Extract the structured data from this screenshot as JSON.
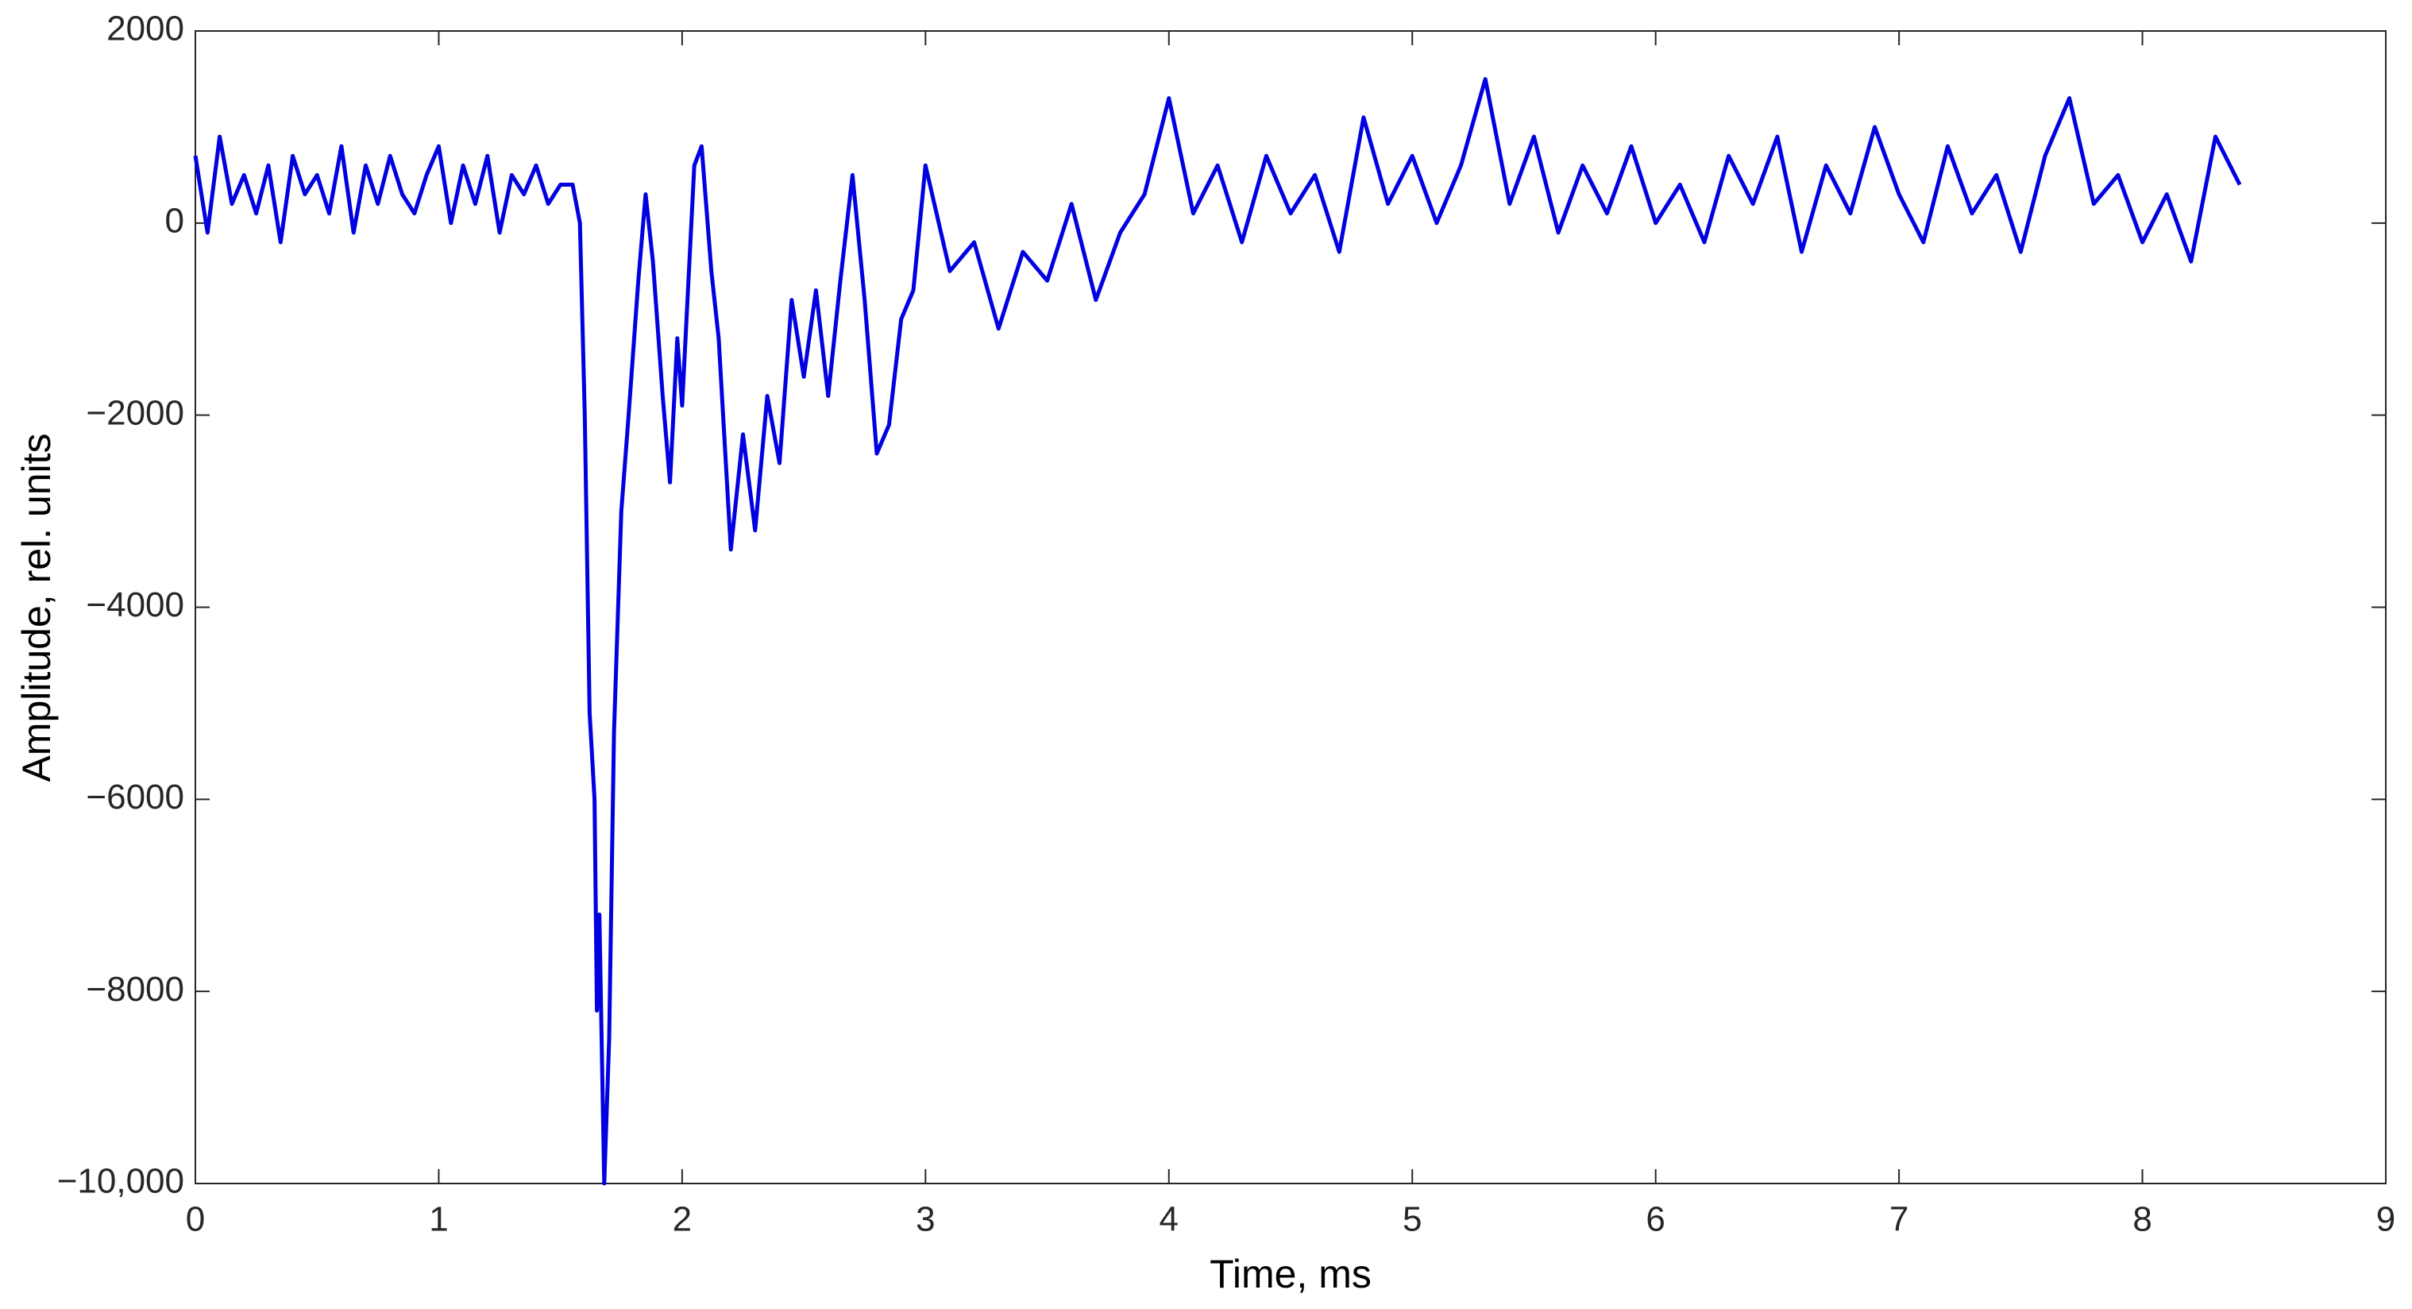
{
  "chart_data": {
    "type": "line",
    "xlabel": "Time, ms",
    "ylabel": "Amplitude, rel. units",
    "color": "#0000e0",
    "xlim": [
      0,
      9
    ],
    "xticks": [
      0,
      1,
      2,
      3,
      4,
      5,
      6,
      7,
      8,
      9
    ],
    "ylim": [
      -10000,
      2000
    ],
    "yticks": [
      2000,
      0,
      {
        "value": -2000,
        "label": "−2000"
      },
      {
        "value": -4000,
        "label": "−4000"
      },
      {
        "value": -6000,
        "label": "−6000"
      },
      {
        "value": -8000,
        "label": "−8000"
      },
      {
        "value": -10000,
        "label": "−10,000"
      }
    ],
    "x": [
      0,
      0.05,
      0.1,
      0.15,
      0.2,
      0.25,
      0.3,
      0.35,
      0.4,
      0.45,
      0.5,
      0.55,
      0.6,
      0.65,
      0.7,
      0.75,
      0.8,
      0.85,
      0.9,
      0.95,
      1.0,
      1.05,
      1.1,
      1.15,
      1.2,
      1.25,
      1.3,
      1.35,
      1.4,
      1.45,
      1.5,
      1.55,
      1.58,
      1.6,
      1.62,
      1.64,
      1.65,
      1.66,
      1.68,
      1.7,
      1.72,
      1.75,
      1.78,
      1.82,
      1.85,
      1.88,
      1.92,
      1.95,
      1.98,
      2.0,
      2.05,
      2.08,
      2.12,
      2.15,
      2.2,
      2.25,
      2.3,
      2.35,
      2.4,
      2.45,
      2.5,
      2.55,
      2.6,
      2.65,
      2.7,
      2.75,
      2.8,
      2.85,
      2.9,
      2.95,
      3.0,
      3.1,
      3.2,
      3.3,
      3.4,
      3.5,
      3.6,
      3.7,
      3.8,
      3.9,
      4.0,
      4.1,
      4.2,
      4.3,
      4.4,
      4.5,
      4.6,
      4.7,
      4.8,
      4.9,
      5.0,
      5.1,
      5.2,
      5.3,
      5.4,
      5.5,
      5.6,
      5.7,
      5.8,
      5.9,
      6.0,
      6.1,
      6.2,
      6.3,
      6.4,
      6.5,
      6.6,
      6.7,
      6.8,
      6.9,
      7.0,
      7.1,
      7.2,
      7.3,
      7.4,
      7.5,
      7.6,
      7.7,
      7.8,
      7.9,
      8.0,
      8.1,
      8.2,
      8.3,
      8.4
    ],
    "values": [
      700,
      -100,
      900,
      200,
      500,
      100,
      600,
      -200,
      700,
      300,
      500,
      100,
      800,
      -100,
      600,
      200,
      700,
      300,
      100,
      500,
      800,
      0,
      600,
      200,
      700,
      -100,
      500,
      300,
      600,
      200,
      400,
      400,
      0,
      -2000,
      -5100,
      -6000,
      -8200,
      -7200,
      -10000,
      -8500,
      -5300,
      -3000,
      -2000,
      -600,
      300,
      -400,
      -1800,
      -2700,
      -1200,
      -1900,
      600,
      800,
      -500,
      -1200,
      -3400,
      -2200,
      -3200,
      -1800,
      -2500,
      -800,
      -1600,
      -700,
      -1800,
      -600,
      500,
      -800,
      -2400,
      -2100,
      -1000,
      -700,
      600,
      -500,
      -200,
      -1100,
      -300,
      -600,
      200,
      -800,
      -100,
      300,
      1300,
      100,
      600,
      -200,
      700,
      100,
      500,
      -300,
      1100,
      200,
      700,
      0,
      600,
      1500,
      200,
      900,
      -100,
      600,
      100,
      800,
      0,
      400,
      -200,
      700,
      200,
      900,
      -300,
      600,
      100,
      1000,
      300,
      -200,
      800,
      100,
      500,
      -300,
      700,
      1300,
      200,
      500,
      -200,
      300,
      -400,
      900,
      400
    ]
  }
}
